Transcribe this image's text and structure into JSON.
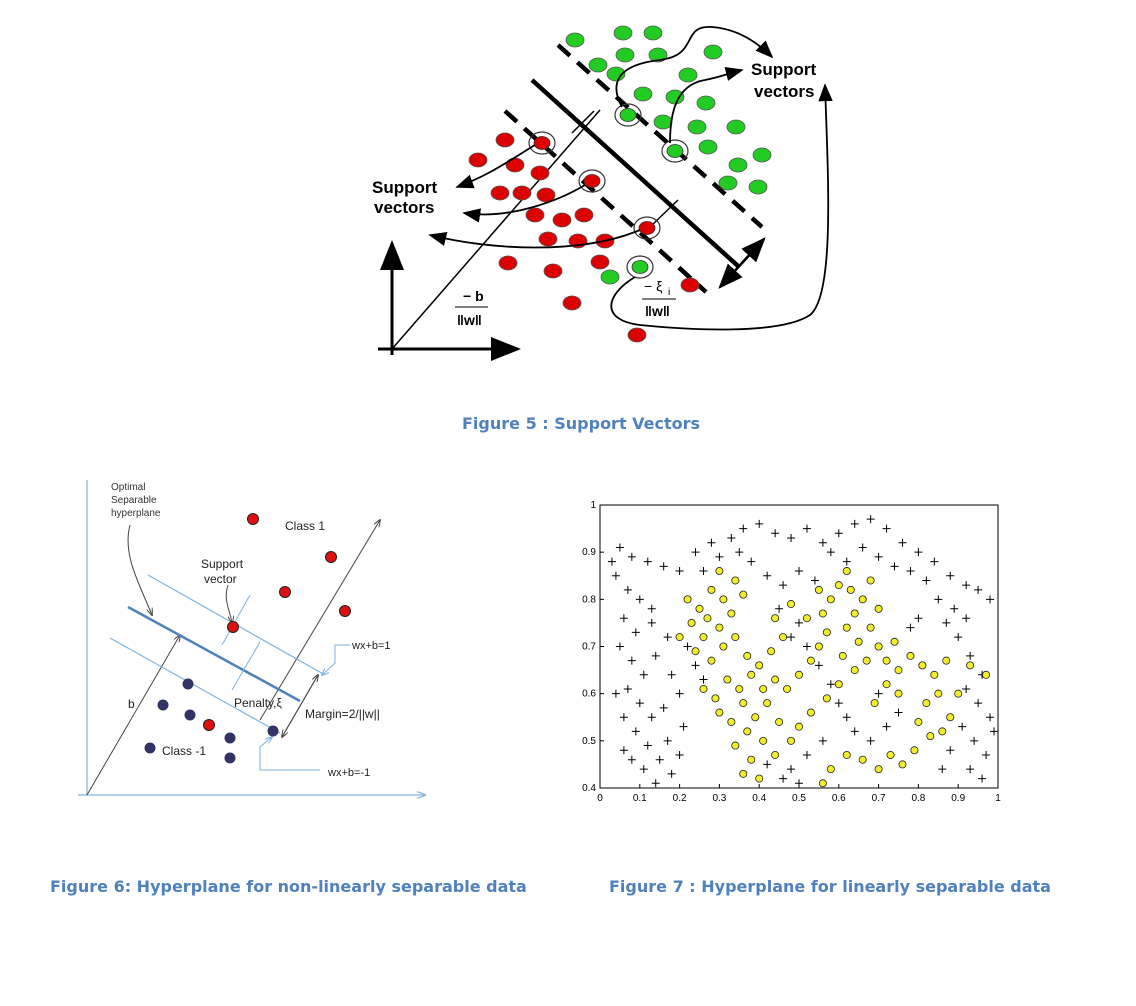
{
  "figure5": {
    "caption": "Figure 5 : Support Vectors",
    "label_left_line1": "Support",
    "label_left_line2": "vectors",
    "label_right_line1": "Support",
    "label_right_line2": "vectors",
    "formula_b_num": "− b",
    "formula_b_den": "‖w‖",
    "formula_xi_num": "− ξ",
    "formula_xi_sub": "i",
    "formula_xi_den": "‖w‖",
    "colors": {
      "positive": "#22cc22",
      "negative": "#dd0000"
    }
  },
  "figure6": {
    "caption": "Figure 6: Hyperplane for non-linearly separable data",
    "label_optimal_line1": "Optimal",
    "label_optimal_line2": "Separable",
    "label_optimal_line3": "hyperplane",
    "label_class1": "Class 1",
    "label_class_neg1": "Class  -1",
    "label_support_line1": "Support",
    "label_support_line2": "vector",
    "label_wx_pos": "wx+b=1",
    "label_wx_neg": "wx+b=-1",
    "label_margin": "Margin=2/||w||",
    "label_penalty": "Penalty,ξ",
    "label_b": "b",
    "colors": {
      "class1": "#dd1111",
      "class_neg1": "#333366",
      "lines": "#7fb2e0"
    }
  },
  "figure7": {
    "caption": "Figure 7 : Hyperplane for linearly separable data",
    "chart_data": {
      "type": "scatter",
      "xlim": [
        0,
        1
      ],
      "ylim": [
        0.4,
        1
      ],
      "xticks": [
        "0",
        "0.1",
        "0.2",
        "0.3",
        "0.4",
        "0.5",
        "0.6",
        "0.7",
        "0.8",
        "0.9",
        "1"
      ],
      "yticks": [
        "0.4",
        "0.5",
        "0.6",
        "0.7",
        "0.8",
        "0.9",
        "1"
      ],
      "series": [
        {
          "marker": "plus",
          "color": "#000000",
          "points": [
            [
              0.05,
              0.91
            ],
            [
              0.08,
              0.89
            ],
            [
              0.12,
              0.88
            ],
            [
              0.16,
              0.87
            ],
            [
              0.2,
              0.86
            ],
            [
              0.24,
              0.9
            ],
            [
              0.28,
              0.92
            ],
            [
              0.33,
              0.93
            ],
            [
              0.36,
              0.95
            ],
            [
              0.4,
              0.96
            ],
            [
              0.44,
              0.94
            ],
            [
              0.48,
              0.93
            ],
            [
              0.52,
              0.95
            ],
            [
              0.56,
              0.92
            ],
            [
              0.6,
              0.94
            ],
            [
              0.64,
              0.96
            ],
            [
              0.68,
              0.97
            ],
            [
              0.72,
              0.95
            ],
            [
              0.76,
              0.92
            ],
            [
              0.8,
              0.9
            ],
            [
              0.84,
              0.88
            ],
            [
              0.88,
              0.85
            ],
            [
              0.92,
              0.83
            ],
            [
              0.95,
              0.82
            ],
            [
              0.98,
              0.8
            ],
            [
              0.04,
              0.85
            ],
            [
              0.07,
              0.82
            ],
            [
              0.1,
              0.8
            ],
            [
              0.13,
              0.78
            ],
            [
              0.06,
              0.76
            ],
            [
              0.09,
              0.73
            ],
            [
              0.05,
              0.7
            ],
            [
              0.08,
              0.67
            ],
            [
              0.11,
              0.64
            ],
            [
              0.07,
              0.61
            ],
            [
              0.1,
              0.58
            ],
            [
              0.13,
              0.55
            ],
            [
              0.09,
              0.52
            ],
            [
              0.12,
              0.49
            ],
            [
              0.15,
              0.46
            ],
            [
              0.18,
              0.43
            ],
            [
              0.14,
              0.41
            ],
            [
              0.2,
              0.47
            ],
            [
              0.17,
              0.5
            ],
            [
              0.21,
              0.53
            ],
            [
              0.16,
              0.57
            ],
            [
              0.2,
              0.6
            ],
            [
              0.18,
              0.64
            ],
            [
              0.14,
              0.68
            ],
            [
              0.17,
              0.72
            ],
            [
              0.13,
              0.75
            ],
            [
              0.38,
              0.88
            ],
            [
              0.42,
              0.85
            ],
            [
              0.46,
              0.83
            ],
            [
              0.5,
              0.86
            ],
            [
              0.54,
              0.84
            ],
            [
              0.45,
              0.78
            ],
            [
              0.5,
              0.75
            ],
            [
              0.48,
              0.72
            ],
            [
              0.52,
              0.7
            ],
            [
              0.55,
              0.66
            ],
            [
              0.58,
              0.62
            ],
            [
              0.6,
              0.58
            ],
            [
              0.62,
              0.55
            ],
            [
              0.64,
              0.52
            ],
            [
              0.68,
              0.5
            ],
            [
              0.72,
              0.53
            ],
            [
              0.75,
              0.56
            ],
            [
              0.7,
              0.6
            ],
            [
              0.56,
              0.5
            ],
            [
              0.52,
              0.47
            ],
            [
              0.48,
              0.44
            ],
            [
              0.46,
              0.42
            ],
            [
              0.5,
              0.41
            ],
            [
              0.42,
              0.45
            ],
            [
              0.9,
              0.72
            ],
            [
              0.93,
              0.68
            ],
            [
              0.96,
              0.64
            ],
            [
              0.92,
              0.61
            ],
            [
              0.95,
              0.58
            ],
            [
              0.98,
              0.55
            ],
            [
              0.91,
              0.53
            ],
            [
              0.94,
              0.5
            ],
            [
              0.97,
              0.47
            ],
            [
              0.93,
              0.44
            ],
            [
              0.96,
              0.42
            ],
            [
              0.99,
              0.52
            ],
            [
              0.88,
              0.48
            ],
            [
              0.86,
              0.44
            ],
            [
              0.85,
              0.8
            ],
            [
              0.89,
              0.78
            ],
            [
              0.92,
              0.76
            ],
            [
              0.87,
              0.75
            ],
            [
              0.78,
              0.74
            ],
            [
              0.8,
              0.76
            ],
            [
              0.06,
              0.55
            ],
            [
              0.04,
              0.6
            ],
            [
              0.03,
              0.88
            ],
            [
              0.26,
              0.86
            ],
            [
              0.3,
              0.89
            ],
            [
              0.35,
              0.9
            ],
            [
              0.58,
              0.9
            ],
            [
              0.62,
              0.88
            ],
            [
              0.66,
              0.91
            ],
            [
              0.7,
              0.89
            ],
            [
              0.74,
              0.87
            ],
            [
              0.78,
              0.86
            ],
            [
              0.82,
              0.84
            ],
            [
              0.24,
              0.66
            ],
            [
              0.22,
              0.7
            ],
            [
              0.26,
              0.63
            ],
            [
              0.11,
              0.44
            ],
            [
              0.08,
              0.46
            ],
            [
              0.06,
              0.48
            ]
          ]
        },
        {
          "marker": "circle",
          "color": "#f2ee2a",
          "points": [
            [
              0.22,
              0.8
            ],
            [
              0.25,
              0.78
            ],
            [
              0.28,
              0.82
            ],
            [
              0.31,
              0.8
            ],
            [
              0.34,
              0.84
            ],
            [
              0.36,
              0.81
            ],
            [
              0.33,
              0.77
            ],
            [
              0.3,
              0.74
            ],
            [
              0.26,
              0.72
            ],
            [
              0.23,
              0.75
            ],
            [
              0.2,
              0.72
            ],
            [
              0.24,
              0.69
            ],
            [
              0.28,
              0.67
            ],
            [
              0.31,
              0.7
            ],
            [
              0.34,
              0.72
            ],
            [
              0.37,
              0.68
            ],
            [
              0.4,
              0.66
            ],
            [
              0.43,
              0.69
            ],
            [
              0.38,
              0.64
            ],
            [
              0.35,
              0.61
            ],
            [
              0.32,
              0.63
            ],
            [
              0.36,
              0.58
            ],
            [
              0.39,
              0.55
            ],
            [
              0.42,
              0.58
            ],
            [
              0.37,
              0.52
            ],
            [
              0.34,
              0.49
            ],
            [
              0.38,
              0.46
            ],
            [
              0.36,
              0.43
            ],
            [
              0.4,
              0.42
            ],
            [
              0.44,
              0.47
            ],
            [
              0.41,
              0.5
            ],
            [
              0.45,
              0.54
            ],
            [
              0.47,
              0.61
            ],
            [
              0.5,
              0.64
            ],
            [
              0.53,
              0.67
            ],
            [
              0.55,
              0.7
            ],
            [
              0.57,
              0.73
            ],
            [
              0.56,
              0.77
            ],
            [
              0.58,
              0.8
            ],
            [
              0.6,
              0.83
            ],
            [
              0.63,
              0.82
            ],
            [
              0.66,
              0.8
            ],
            [
              0.64,
              0.77
            ],
            [
              0.62,
              0.74
            ],
            [
              0.65,
              0.71
            ],
            [
              0.68,
              0.74
            ],
            [
              0.7,
              0.7
            ],
            [
              0.67,
              0.67
            ],
            [
              0.64,
              0.65
            ],
            [
              0.61,
              0.68
            ],
            [
              0.72,
              0.67
            ],
            [
              0.75,
              0.65
            ],
            [
              0.78,
              0.68
            ],
            [
              0.81,
              0.66
            ],
            [
              0.84,
              0.64
            ],
            [
              0.87,
              0.67
            ],
            [
              0.85,
              0.6
            ],
            [
              0.82,
              0.58
            ],
            [
              0.8,
              0.54
            ],
            [
              0.83,
              0.51
            ],
            [
              0.79,
              0.48
            ],
            [
              0.76,
              0.45
            ],
            [
              0.73,
              0.47
            ],
            [
              0.7,
              0.44
            ],
            [
              0.66,
              0.46
            ],
            [
              0.62,
              0.47
            ],
            [
              0.58,
              0.44
            ],
            [
              0.56,
              0.41
            ],
            [
              0.88,
              0.55
            ],
            [
              0.86,
              0.52
            ],
            [
              0.9,
              0.6
            ],
            [
              0.93,
              0.66
            ],
            [
              0.97,
              0.64
            ],
            [
              0.75,
              0.6
            ],
            [
              0.72,
              0.62
            ],
            [
              0.69,
              0.58
            ],
            [
              0.46,
              0.72
            ],
            [
              0.44,
              0.76
            ],
            [
              0.48,
              0.79
            ],
            [
              0.29,
              0.59
            ],
            [
              0.26,
              0.61
            ],
            [
              0.3,
              0.56
            ],
            [
              0.33,
              0.54
            ],
            [
              0.3,
              0.86
            ],
            [
              0.27,
              0.76
            ],
            [
              0.6,
              0.62
            ],
            [
              0.57,
              0.59
            ],
            [
              0.53,
              0.56
            ],
            [
              0.5,
              0.53
            ],
            [
              0.48,
              0.5
            ],
            [
              0.44,
              0.63
            ],
            [
              0.41,
              0.61
            ],
            [
              0.62,
              0.86
            ],
            [
              0.55,
              0.82
            ],
            [
              0.52,
              0.76
            ],
            [
              0.68,
              0.84
            ],
            [
              0.7,
              0.78
            ],
            [
              0.74,
              0.71
            ]
          ]
        }
      ]
    }
  }
}
